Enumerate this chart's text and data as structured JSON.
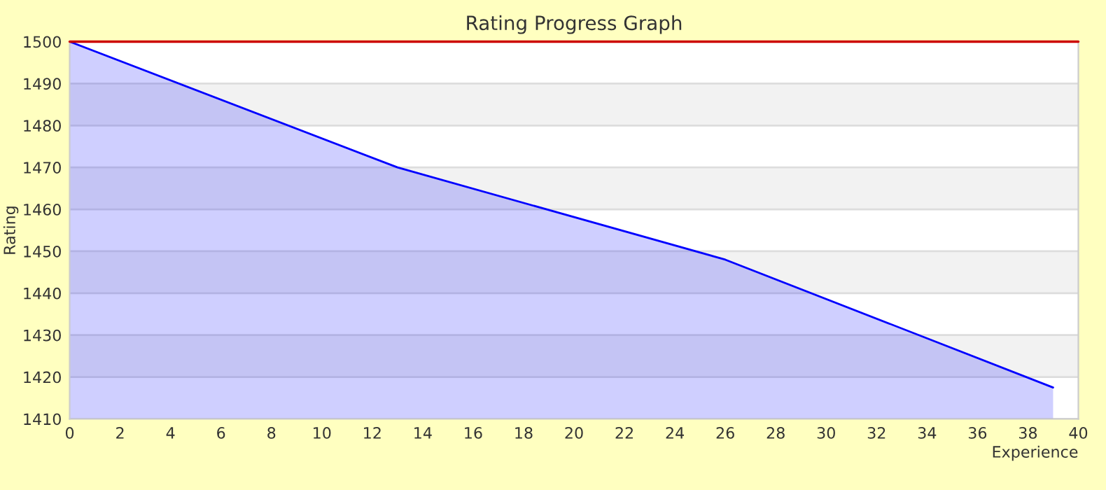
{
  "chart_data": {
    "type": "area",
    "title": "Rating Progress Graph",
    "xlabel": "Experience",
    "ylabel": "Rating",
    "x": [
      0,
      13,
      26,
      39
    ],
    "series": [
      {
        "color": "#0000ff",
        "values": [
          1500,
          1470,
          1448,
          1417.5
        ]
      }
    ],
    "xlim": [
      0,
      40
    ],
    "xticks": [
      0,
      2,
      4,
      6,
      8,
      10,
      12,
      14,
      16,
      18,
      20,
      22,
      24,
      26,
      28,
      30,
      32,
      34,
      36,
      38,
      40
    ],
    "ylim": [
      1410,
      1500
    ],
    "yticks": [
      1410,
      1420,
      1430,
      1440,
      1450,
      1460,
      1470,
      1480,
      1490,
      1500
    ],
    "grid": "y",
    "bands": [
      {
        "axis": "y",
        "from": 1420,
        "to": 1430,
        "color": "#f2f2f2"
      },
      {
        "axis": "y",
        "from": 1440,
        "to": 1450,
        "color": "#f2f2f2"
      },
      {
        "axis": "y",
        "from": 1460,
        "to": 1470,
        "color": "#f2f2f2"
      },
      {
        "axis": "y",
        "from": 1480,
        "to": 1490,
        "color": "#f2f2f2"
      }
    ],
    "ref_lines": [
      {
        "axis": "y",
        "value": 1500,
        "color": "#cc0000"
      }
    ]
  }
}
